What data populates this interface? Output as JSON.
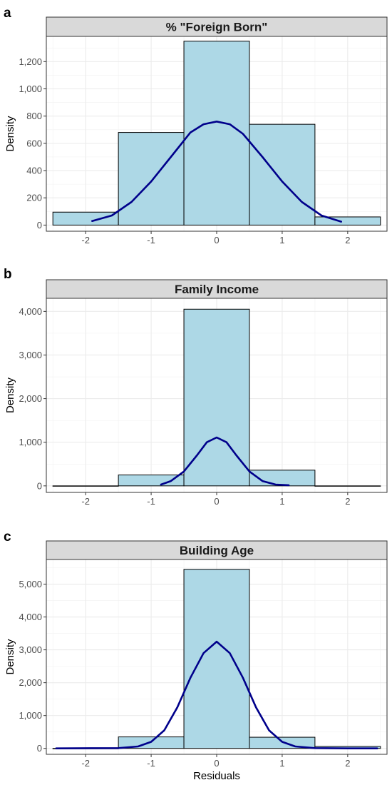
{
  "chart_data": [
    {
      "type": "bar",
      "panel_label": "a",
      "title": "% \"Foreign Born\"",
      "xlabel": "",
      "ylabel": "Density",
      "xlim": [
        -2.6,
        2.6
      ],
      "ylim": [
        -45,
        1385
      ],
      "x_ticks": [
        -2,
        -1,
        0,
        1,
        2
      ],
      "x_tick_labels": [
        "-2",
        "-1",
        "0",
        "1",
        "2"
      ],
      "y_ticks": [
        0,
        200,
        400,
        600,
        800,
        1000,
        1200
      ],
      "y_tick_labels": [
        "0",
        "200",
        "400",
        "600",
        "800",
        "1,000",
        "1,200"
      ],
      "grid": true,
      "bins": [
        {
          "x0": -2.5,
          "x1": -1.5,
          "value": 95
        },
        {
          "x0": -1.5,
          "x1": -0.5,
          "value": 680
        },
        {
          "x0": -0.5,
          "x1": 0.5,
          "value": 1350
        },
        {
          "x0": 0.5,
          "x1": 1.5,
          "value": 740
        },
        {
          "x0": 1.5,
          "x1": 2.5,
          "value": 60
        }
      ],
      "curve": {
        "x": [
          -1.9,
          -1.6,
          -1.3,
          -1.0,
          -0.7,
          -0.4,
          -0.2,
          0.0,
          0.2,
          0.4,
          0.7,
          1.0,
          1.3,
          1.6,
          1.9
        ],
        "y": [
          30,
          70,
          170,
          320,
          500,
          680,
          740,
          760,
          740,
          670,
          500,
          320,
          170,
          70,
          25
        ]
      },
      "bar_fill": "#add8e6",
      "curve_color": "#00008b"
    },
    {
      "type": "bar",
      "panel_label": "b",
      "title": "Family Income",
      "xlabel": "",
      "ylabel": "Density",
      "xlim": [
        -2.6,
        2.6
      ],
      "ylim": [
        -150,
        4300
      ],
      "x_ticks": [
        -2,
        -1,
        0,
        1,
        2
      ],
      "x_tick_labels": [
        "-2",
        "-1",
        "0",
        "1",
        "2"
      ],
      "y_ticks": [
        0,
        1000,
        2000,
        3000,
        4000
      ],
      "y_tick_labels": [
        "0",
        "1,000",
        "2,000",
        "3,000",
        "4,000"
      ],
      "grid": true,
      "bins": [
        {
          "x0": -2.5,
          "x1": -1.5,
          "value": 0
        },
        {
          "x0": -1.5,
          "x1": -0.5,
          "value": 250
        },
        {
          "x0": -0.5,
          "x1": 0.5,
          "value": 4050
        },
        {
          "x0": 0.5,
          "x1": 1.5,
          "value": 360
        },
        {
          "x0": 1.5,
          "x1": 2.5,
          "value": 0
        }
      ],
      "curve": {
        "x": [
          -0.85,
          -0.7,
          -0.5,
          -0.3,
          -0.15,
          0.0,
          0.15,
          0.3,
          0.5,
          0.7,
          0.9,
          1.1
        ],
        "y": [
          30,
          110,
          330,
          700,
          1000,
          1110,
          1000,
          700,
          330,
          110,
          30,
          15
        ]
      },
      "bar_fill": "#add8e6",
      "curve_color": "#00008b"
    },
    {
      "type": "bar",
      "panel_label": "c",
      "title": "Building Age",
      "xlabel": "Residuals",
      "ylabel": "Density",
      "xlim": [
        -2.6,
        2.6
      ],
      "ylim": [
        -180,
        5750
      ],
      "x_ticks": [
        -2,
        -1,
        0,
        1,
        2
      ],
      "x_tick_labels": [
        "-2",
        "-1",
        "0",
        "1",
        "2"
      ],
      "y_ticks": [
        0,
        1000,
        2000,
        3000,
        4000,
        5000
      ],
      "y_tick_labels": [
        "0",
        "1,000",
        "2,000",
        "3,000",
        "4,000",
        "5,000"
      ],
      "grid": true,
      "bins": [
        {
          "x0": -2.5,
          "x1": -1.5,
          "value": 0
        },
        {
          "x0": -1.5,
          "x1": -0.5,
          "value": 350
        },
        {
          "x0": -0.5,
          "x1": 0.5,
          "value": 5450
        },
        {
          "x0": 0.5,
          "x1": 1.5,
          "value": 340
        },
        {
          "x0": 1.5,
          "x1": 2.5,
          "value": 60
        }
      ],
      "curve": {
        "x": [
          -2.45,
          -1.5,
          -1.2,
          -1.0,
          -0.8,
          -0.6,
          -0.4,
          -0.2,
          0.0,
          0.2,
          0.4,
          0.6,
          0.8,
          1.0,
          1.2,
          1.5,
          2.0,
          2.45
        ],
        "y": [
          0,
          10,
          60,
          200,
          550,
          1250,
          2150,
          2900,
          3250,
          2900,
          2150,
          1250,
          550,
          200,
          60,
          10,
          0,
          0
        ]
      },
      "bar_fill": "#add8e6",
      "curve_color": "#00008b"
    }
  ]
}
